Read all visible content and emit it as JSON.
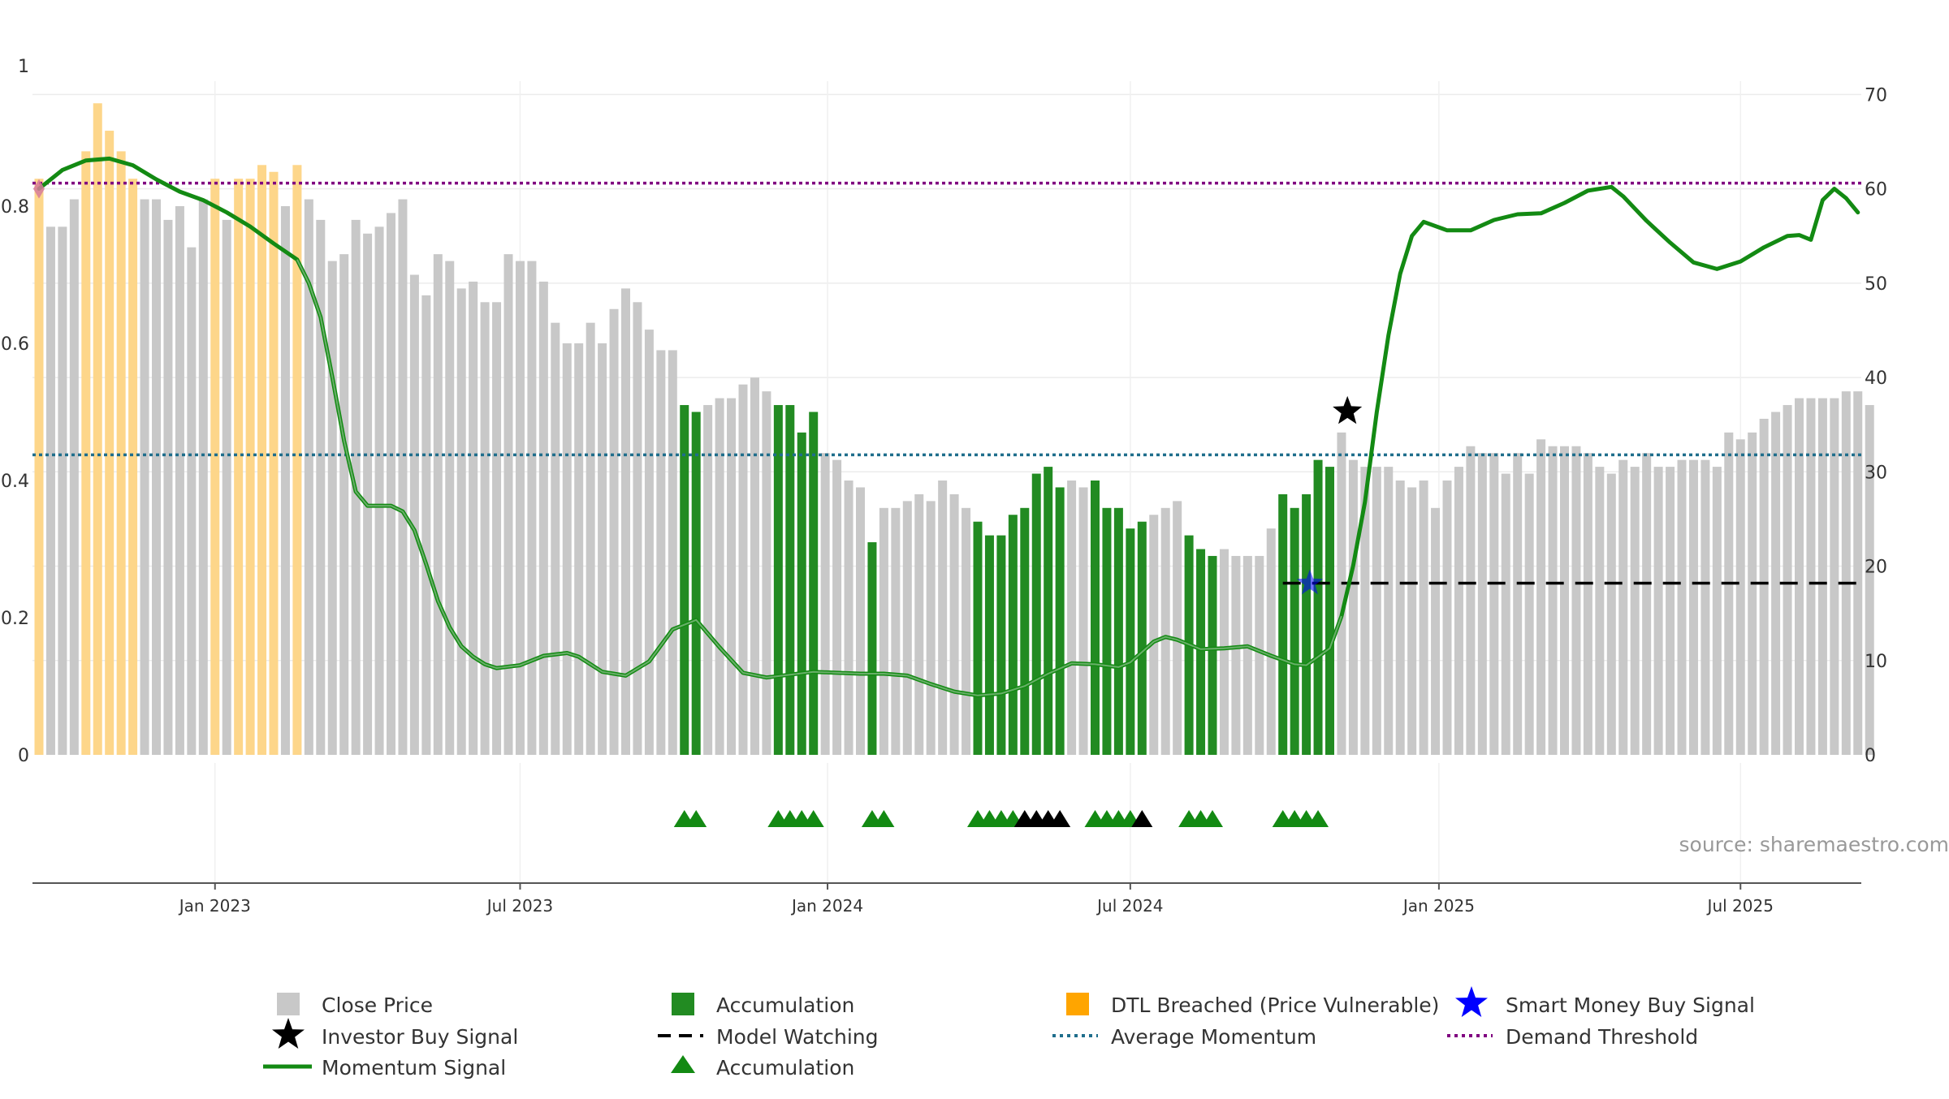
{
  "source_note": "source: sharemaestro.com",
  "colors": {
    "close_price": "#c8c8c8",
    "accumulation": "#228b22",
    "dtl_breached": "#fdd68a",
    "momentum": "#138a13",
    "average_momentum": "#1f6e8c",
    "demand_threshold": "#800080",
    "model_watching": "#000000",
    "investor_buy": "#000000",
    "smart_money": "#0000ff"
  },
  "legend": {
    "close_price": "Close Price",
    "accumulation_bar": "Accumulation",
    "dtl_breached": "DTL Breached (Price Vulnerable)",
    "smart_money": "Smart Money Buy Signal",
    "investor_buy": "Investor Buy Signal",
    "model_watching": "Model Watching",
    "average_momentum": "Average Momentum",
    "demand_threshold": "Demand Threshold",
    "momentum": "Momentum Signal",
    "accumulation_marker": "Accumulation"
  },
  "chart_data": {
    "type": "bar",
    "left_axis": {
      "ticks": [
        "0",
        "0.2",
        "0.4",
        "0.6",
        "0.8",
        "1"
      ],
      "ylim": [
        0,
        1
      ]
    },
    "right_axis": {
      "ticks": [
        "0",
        "10",
        "20",
        "30",
        "40",
        "50",
        "60",
        "70"
      ],
      "ylim": [
        0,
        72.7
      ]
    },
    "x_ticks": [
      "Jan 2023",
      "Jul 2023",
      "Jan 2024",
      "Jul 2024",
      "Jan 2025",
      "Jul 2025"
    ],
    "x_tick_bar_positions": [
      15,
      41,
      67.2,
      93,
      119.3,
      145
    ],
    "close_price": [
      0.84,
      0.77,
      0.77,
      0.81,
      0.88,
      0.95,
      0.91,
      0.88,
      0.84,
      0.81,
      0.81,
      0.78,
      0.8,
      0.74,
      0.81,
      0.84,
      0.78,
      0.84,
      0.84,
      0.86,
      0.85,
      0.8,
      0.86,
      0.81,
      0.78,
      0.72,
      0.73,
      0.78,
      0.76,
      0.77,
      0.79,
      0.81,
      0.7,
      0.67,
      0.73,
      0.72,
      0.68,
      0.69,
      0.66,
      0.66,
      0.73,
      0.72,
      0.72,
      0.69,
      0.63,
      0.6,
      0.6,
      0.63,
      0.6,
      0.65,
      0.68,
      0.66,
      0.62,
      0.59,
      0.59,
      0.51,
      0.5,
      0.51,
      0.52,
      0.52,
      0.54,
      0.55,
      0.53,
      0.51,
      0.51,
      0.47,
      0.5,
      0.44,
      0.43,
      0.4,
      0.39,
      0.31,
      0.36,
      0.36,
      0.37,
      0.38,
      0.37,
      0.4,
      0.38,
      0.36,
      0.34,
      0.32,
      0.32,
      0.35,
      0.36,
      0.41,
      0.42,
      0.39,
      0.4,
      0.39,
      0.4,
      0.36,
      0.36,
      0.33,
      0.34,
      0.35,
      0.36,
      0.37,
      0.32,
      0.3,
      0.29,
      0.3,
      0.29,
      0.29,
      0.29,
      0.33,
      0.38,
      0.36,
      0.38,
      0.43,
      0.42,
      0.47,
      0.43,
      0.42,
      0.42,
      0.42,
      0.4,
      0.39,
      0.4,
      0.36,
      0.4,
      0.42,
      0.45,
      0.44,
      0.44,
      0.41,
      0.44,
      0.41,
      0.46,
      0.45,
      0.45,
      0.45,
      0.44,
      0.42,
      0.41,
      0.43,
      0.42,
      0.44,
      0.42,
      0.42,
      0.43,
      0.43,
      0.43,
      0.42,
      0.47,
      0.46,
      0.47,
      0.49,
      0.5,
      0.51,
      0.52,
      0.52,
      0.52,
      0.52,
      0.53,
      0.53,
      0.51
    ],
    "accumulation_bars": [
      55,
      56,
      63,
      64,
      65,
      66,
      71,
      80,
      81,
      82,
      83,
      84,
      85,
      86,
      87,
      90,
      91,
      92,
      93,
      94,
      98,
      99,
      100,
      106,
      107,
      108,
      109,
      110
    ],
    "dtl_breached_bars": [
      0,
      4,
      5,
      6,
      7,
      8,
      15,
      17,
      18,
      19,
      20,
      22
    ],
    "momentum": [
      [
        0,
        60
      ],
      [
        2,
        62
      ],
      [
        4,
        63
      ],
      [
        6,
        63.2
      ],
      [
        8,
        62.5
      ],
      [
        10,
        61
      ],
      [
        12,
        59.7
      ],
      [
        14,
        58.8
      ],
      [
        16,
        57.5
      ],
      [
        18,
        56
      ],
      [
        20,
        54.2
      ],
      [
        22,
        52.5
      ],
      [
        23,
        50
      ],
      [
        24,
        46.4
      ],
      [
        25,
        40
      ],
      [
        26,
        33.3
      ],
      [
        27,
        27.9
      ],
      [
        28,
        26.4
      ],
      [
        29,
        26.4
      ],
      [
        30,
        26.4
      ],
      [
        31,
        25.8
      ],
      [
        32,
        23.8
      ],
      [
        33,
        20.2
      ],
      [
        34,
        16.3
      ],
      [
        35,
        13.5
      ],
      [
        36,
        11.5
      ],
      [
        37,
        10.4
      ],
      [
        38,
        9.6
      ],
      [
        39,
        9.2
      ],
      [
        41,
        9.5
      ],
      [
        43,
        10.5
      ],
      [
        45,
        10.8
      ],
      [
        46,
        10.4
      ],
      [
        47,
        9.6
      ],
      [
        48,
        8.8
      ],
      [
        50,
        8.4
      ],
      [
        52,
        9.9
      ],
      [
        54,
        13.3
      ],
      [
        56,
        14.3
      ],
      [
        58,
        11.4
      ],
      [
        60,
        8.7
      ],
      [
        62,
        8.2
      ],
      [
        64,
        8.5
      ],
      [
        66,
        8.8
      ],
      [
        68,
        8.7
      ],
      [
        70,
        8.6
      ],
      [
        72,
        8.6
      ],
      [
        74,
        8.4
      ],
      [
        76,
        7.5
      ],
      [
        78,
        6.7
      ],
      [
        80,
        6.3
      ],
      [
        82,
        6.5
      ],
      [
        84,
        7.3
      ],
      [
        86,
        8.6
      ],
      [
        88,
        9.7
      ],
      [
        90,
        9.6
      ],
      [
        92,
        9.3
      ],
      [
        93,
        9.8
      ],
      [
        95,
        12
      ],
      [
        96,
        12.5
      ],
      [
        97,
        12.2
      ],
      [
        99,
        11.2
      ],
      [
        101,
        11.3
      ],
      [
        103,
        11.5
      ],
      [
        105,
        10.5
      ],
      [
        107,
        9.6
      ],
      [
        108,
        9.5
      ],
      [
        110,
        11.3
      ],
      [
        111,
        14.7
      ],
      [
        112,
        20.1
      ],
      [
        113,
        26.8
      ],
      [
        114,
        36.3
      ],
      [
        115,
        44.5
      ],
      [
        116,
        51
      ],
      [
        117,
        55
      ],
      [
        118,
        56.5
      ],
      [
        120,
        55.6
      ],
      [
        122,
        55.6
      ],
      [
        124,
        56.7
      ],
      [
        126,
        57.3
      ],
      [
        128,
        57.4
      ],
      [
        130,
        58.5
      ],
      [
        132,
        59.8
      ],
      [
        134,
        60.2
      ],
      [
        135,
        59.2
      ],
      [
        137,
        56.6
      ],
      [
        139,
        54.3
      ],
      [
        141,
        52.2
      ],
      [
        143,
        51.5
      ],
      [
        145,
        52.3
      ],
      [
        147,
        53.8
      ],
      [
        149,
        55
      ],
      [
        150,
        55.1
      ],
      [
        151,
        54.6
      ],
      [
        152,
        58.8
      ],
      [
        153,
        60
      ],
      [
        154,
        59
      ],
      [
        155,
        57.5
      ]
    ],
    "momentum_overlay_range": [
      22,
      111
    ],
    "average_momentum": 31.8,
    "demand_threshold": 60.6,
    "model_watching": {
      "value": 18.2,
      "from_bar": 106,
      "to_bar": 155
    },
    "investor_buy_signal": {
      "bar": 111.5,
      "value": 36.4
    },
    "smart_money_buy_signal": {
      "bar": 108.3,
      "value": 18.2
    },
    "accumulation_markers": [
      {
        "bar": 55,
        "color": "green"
      },
      {
        "bar": 56,
        "color": "green"
      },
      {
        "bar": 63,
        "color": "green"
      },
      {
        "bar": 64,
        "color": "green"
      },
      {
        "bar": 65,
        "color": "green"
      },
      {
        "bar": 66,
        "color": "green"
      },
      {
        "bar": 71,
        "color": "green"
      },
      {
        "bar": 72,
        "color": "green"
      },
      {
        "bar": 80,
        "color": "green"
      },
      {
        "bar": 81,
        "color": "green"
      },
      {
        "bar": 82,
        "color": "green"
      },
      {
        "bar": 83,
        "color": "green"
      },
      {
        "bar": 84,
        "color": "black"
      },
      {
        "bar": 85,
        "color": "black"
      },
      {
        "bar": 86,
        "color": "black"
      },
      {
        "bar": 87,
        "color": "black"
      },
      {
        "bar": 90,
        "color": "green"
      },
      {
        "bar": 91,
        "color": "green"
      },
      {
        "bar": 92,
        "color": "green"
      },
      {
        "bar": 93,
        "color": "green"
      },
      {
        "bar": 94,
        "color": "black"
      },
      {
        "bar": 98,
        "color": "green"
      },
      {
        "bar": 99,
        "color": "green"
      },
      {
        "bar": 100,
        "color": "green"
      },
      {
        "bar": 106,
        "color": "green"
      },
      {
        "bar": 107,
        "color": "green"
      },
      {
        "bar": 108,
        "color": "green"
      },
      {
        "bar": 109,
        "color": "green"
      }
    ],
    "grid": true
  }
}
